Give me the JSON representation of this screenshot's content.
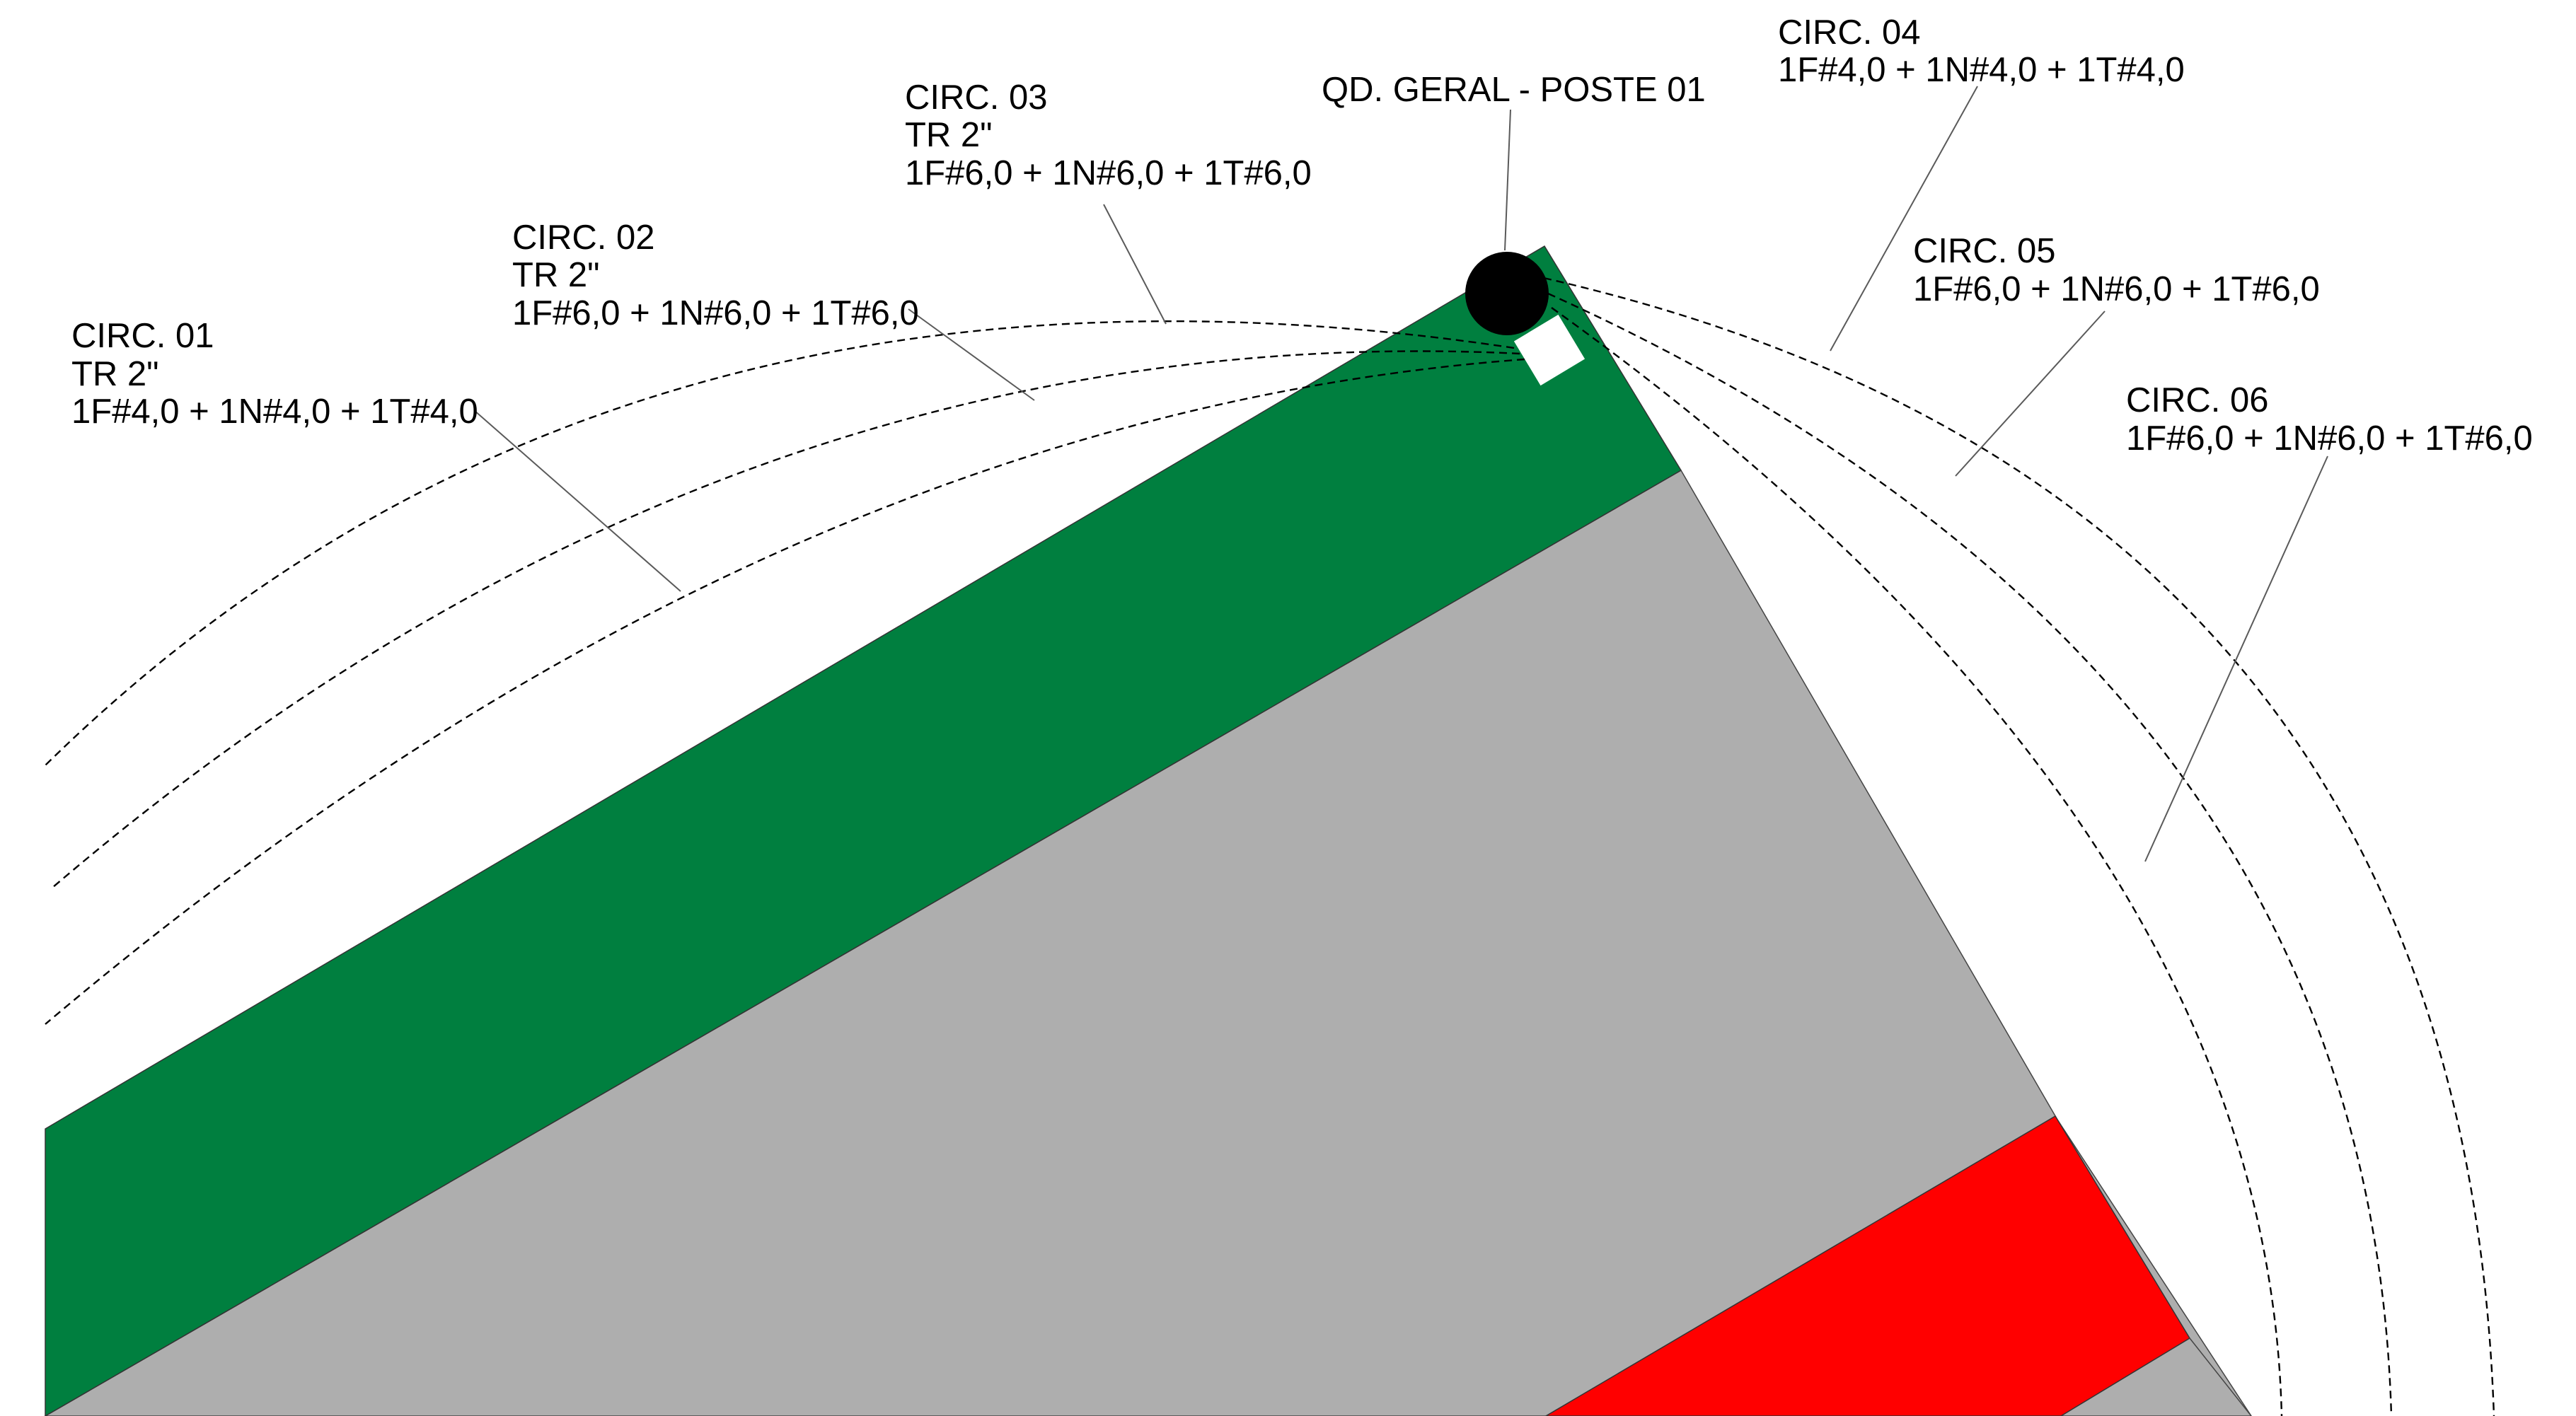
{
  "colors": {
    "green_strip": "#007f3f",
    "gray_area": "#aeaeae",
    "red_strip": "#ff0000",
    "pole": "#000000",
    "panel": "#ffffff",
    "route_line": "#000000",
    "leader_line": "#5a5a5a"
  },
  "pole": {
    "label": "QD. GERAL - POSTE 01"
  },
  "circuits": [
    {
      "id": "01",
      "title": "CIRC. 01",
      "conduit": "TR 2\"",
      "cable": "1F#4,0 + 1N#4,0 + 1T#4,0"
    },
    {
      "id": "02",
      "title": "CIRC. 02",
      "conduit": "TR 2\"",
      "cable": "1F#6,0 + 1N#6,0 + 1T#6,0"
    },
    {
      "id": "03",
      "title": "CIRC. 03",
      "conduit": "TR 2\"",
      "cable": "1F#6,0 + 1N#6,0 + 1T#6,0"
    },
    {
      "id": "04",
      "title": "CIRC. 04",
      "conduit": "",
      "cable": "1F#4,0 + 1N#4,0 + 1T#4,0"
    },
    {
      "id": "05",
      "title": "CIRC. 05",
      "conduit": "",
      "cable": "1F#6,0 + 1N#6,0 + 1T#6,0"
    },
    {
      "id": "06",
      "title": "CIRC. 06",
      "conduit": "",
      "cable": "1F#6,0 + 1N#6,0 + 1T#6,0"
    }
  ],
  "icons": {
    "pole": "pole-icon",
    "panel": "panel-box-icon"
  }
}
